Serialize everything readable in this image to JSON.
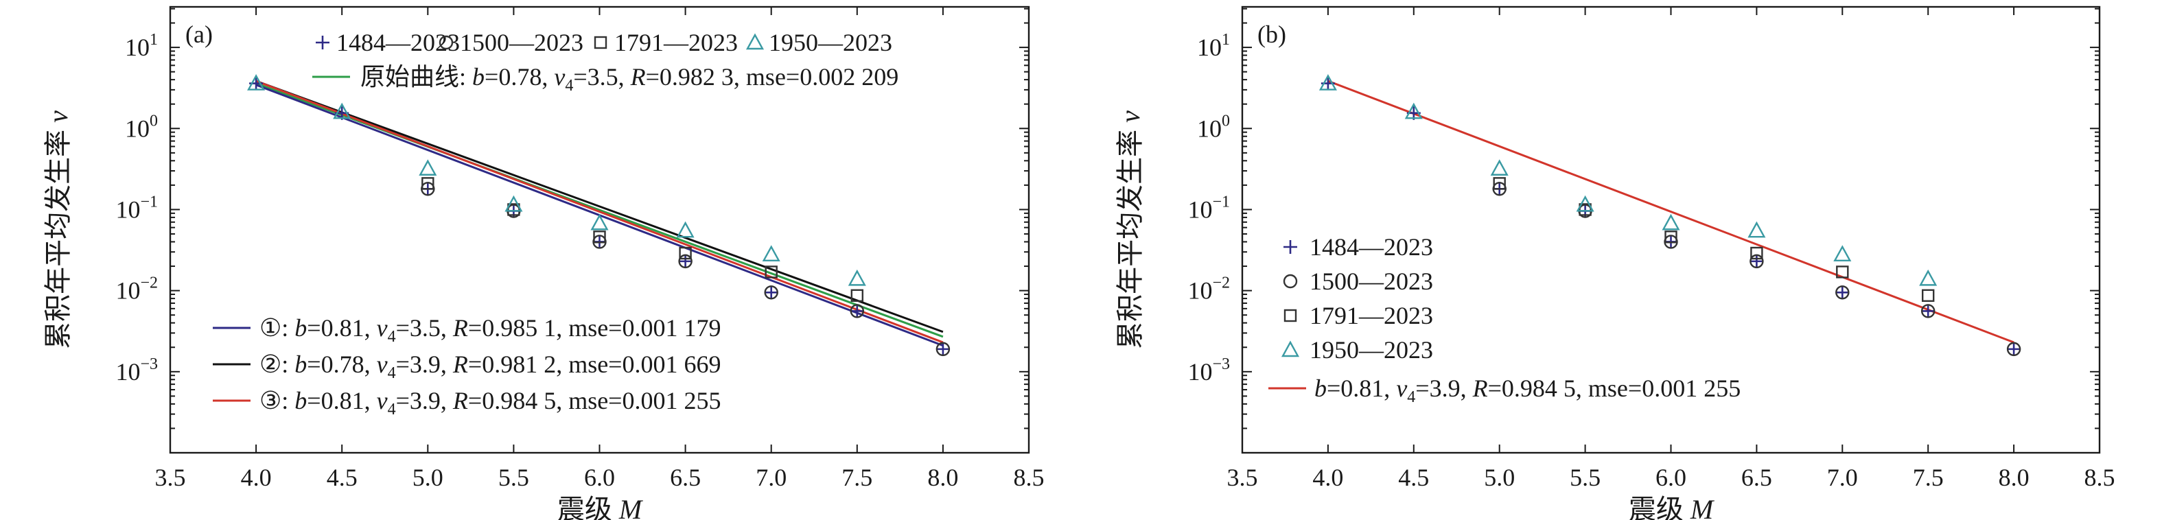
{
  "colors": {
    "axis": "#1a1a1a",
    "marker_plus": "#2e2a86",
    "marker_circle": "#333333",
    "marker_square": "#333333",
    "marker_triangle": "#3a9aa3",
    "line_original": "#2e9e48",
    "line_1": "#2e2a86",
    "line_2": "#111111",
    "line_3": "#d2352b"
  },
  "chart_data": [
    {
      "panel": "(a)",
      "type": "scatter",
      "xlabel": "震级 M",
      "ylabel": "累积年平均发生率 ν",
      "xlim": [
        3.5,
        8.5
      ],
      "ylim_log10": [
        -4,
        1.5
      ],
      "y_scale": "log",
      "x_ticks": [
        "3.5",
        "4.0",
        "4.5",
        "5.0",
        "5.5",
        "6.0",
        "6.5",
        "7.0",
        "7.5",
        "8.0",
        "8.5"
      ],
      "y_ticks": [
        {
          "mant": "10",
          "exp": "1"
        },
        {
          "mant": "10",
          "exp": "0"
        },
        {
          "mant": "10",
          "exp": "−1"
        },
        {
          "mant": "10",
          "exp": "−2"
        },
        {
          "mant": "10",
          "exp": "−3"
        }
      ],
      "series": [
        {
          "name": "1484—2023",
          "marker": "plus",
          "x": [
            4.0,
            4.5,
            5.0,
            5.5,
            6.0,
            6.5,
            7.0,
            7.5,
            8.0
          ],
          "y": [
            3.6,
            1.55,
            0.18,
            0.096,
            0.04,
            0.023,
            0.0095,
            0.0056,
            0.0019
          ]
        },
        {
          "name": "1500—2023",
          "marker": "circle",
          "x": [
            5.0,
            5.5,
            6.0,
            6.5,
            7.0,
            7.5,
            8.0
          ],
          "y": [
            0.18,
            0.096,
            0.04,
            0.023,
            0.0095,
            0.0056,
            0.0019
          ]
        },
        {
          "name": "1791—2023",
          "marker": "square",
          "x": [
            5.0,
            5.5,
            6.0,
            6.5,
            7.0,
            7.5
          ],
          "y": [
            0.21,
            0.1,
            0.046,
            0.029,
            0.017,
            0.0087
          ]
        },
        {
          "name": "1950—2023",
          "marker": "triangle",
          "x": [
            4.0,
            4.5,
            5.0,
            5.5,
            6.0,
            6.5,
            7.0,
            7.5
          ],
          "y": [
            3.6,
            1.6,
            0.32,
            0.115,
            0.068,
            0.055,
            0.028,
            0.014
          ]
        }
      ],
      "lines": [
        {
          "key": "original",
          "x": [
            4.0,
            8.0
          ],
          "y": [
            3.6,
            0.0027
          ]
        },
        {
          "key": "l1",
          "x": [
            4.0,
            8.0
          ],
          "y": [
            3.45,
            0.0021
          ]
        },
        {
          "key": "l2",
          "x": [
            4.0,
            8.0
          ],
          "y": [
            3.85,
            0.0031
          ]
        },
        {
          "key": "l3",
          "x": [
            4.0,
            8.0
          ],
          "y": [
            3.85,
            0.0023
          ]
        }
      ],
      "legend_top": [
        {
          "marker": "plus",
          "label": "1484—2023"
        },
        {
          "marker": "circle",
          "label": "1500—2023"
        },
        {
          "marker": "square",
          "label": "1791—2023"
        },
        {
          "marker": "triangle",
          "label": "1950—2023"
        }
      ],
      "legend_original": {
        "prefix": "原始曲线: ",
        "b": "0.78",
        "v4": "3.5",
        "R": "0.982 3",
        "mse": "0.002 209"
      },
      "legend_lines": [
        {
          "key": "l1",
          "prefix": "①: ",
          "b": "0.81",
          "v4": "3.5",
          "R": "0.985 1",
          "mse": "0.001 179"
        },
        {
          "key": "l2",
          "prefix": "②: ",
          "b": "0.78",
          "v4": "3.9",
          "R": "0.981 2",
          "mse": "0.001 669"
        },
        {
          "key": "l3",
          "prefix": "③: ",
          "b": "0.81",
          "v4": "3.9",
          "R": "0.984 5",
          "mse": "0.001 255"
        }
      ]
    },
    {
      "panel": "(b)",
      "type": "scatter",
      "xlabel": "震级 M",
      "ylabel": "累积年平均发生率 ν",
      "xlim": [
        3.5,
        8.5
      ],
      "ylim_log10": [
        -4,
        1.5
      ],
      "y_scale": "log",
      "x_ticks": [
        "3.5",
        "4.0",
        "4.5",
        "5.0",
        "5.5",
        "6.0",
        "6.5",
        "7.0",
        "7.5",
        "8.0",
        "8.5"
      ],
      "y_ticks": [
        {
          "mant": "10",
          "exp": "1"
        },
        {
          "mant": "10",
          "exp": "0"
        },
        {
          "mant": "10",
          "exp": "−1"
        },
        {
          "mant": "10",
          "exp": "−2"
        },
        {
          "mant": "10",
          "exp": "−3"
        }
      ],
      "series": [
        {
          "name": "1484—2023",
          "marker": "plus",
          "x": [
            4.0,
            4.5,
            5.0,
            5.5,
            6.0,
            6.5,
            7.0,
            7.5,
            8.0
          ],
          "y": [
            3.6,
            1.55,
            0.18,
            0.096,
            0.04,
            0.023,
            0.0095,
            0.0056,
            0.0019
          ]
        },
        {
          "name": "1500—2023",
          "marker": "circle",
          "x": [
            5.0,
            5.5,
            6.0,
            6.5,
            7.0,
            7.5,
            8.0
          ],
          "y": [
            0.18,
            0.096,
            0.04,
            0.023,
            0.0095,
            0.0056,
            0.0019
          ]
        },
        {
          "name": "1791—2023",
          "marker": "square",
          "x": [
            5.0,
            5.5,
            6.0,
            6.5,
            7.0,
            7.5
          ],
          "y": [
            0.21,
            0.1,
            0.046,
            0.029,
            0.017,
            0.0087
          ]
        },
        {
          "name": "1950—2023",
          "marker": "triangle",
          "x": [
            4.0,
            4.5,
            5.0,
            5.5,
            6.0,
            6.5,
            7.0,
            7.5
          ],
          "y": [
            3.6,
            1.6,
            0.32,
            0.115,
            0.068,
            0.055,
            0.028,
            0.014
          ]
        }
      ],
      "lines": [
        {
          "key": "l3",
          "x": [
            4.0,
            8.0
          ],
          "y": [
            3.85,
            0.0023
          ]
        }
      ],
      "legend_left": [
        {
          "marker": "plus",
          "label": "1484—2023"
        },
        {
          "marker": "circle",
          "label": "1500—2023"
        },
        {
          "marker": "square",
          "label": "1791—2023"
        },
        {
          "marker": "triangle",
          "label": "1950—2023"
        }
      ],
      "legend_fit": {
        "key": "l3",
        "b": "0.81",
        "v4": "3.9",
        "R": "0.984 5",
        "mse": "0.001 255"
      }
    }
  ]
}
